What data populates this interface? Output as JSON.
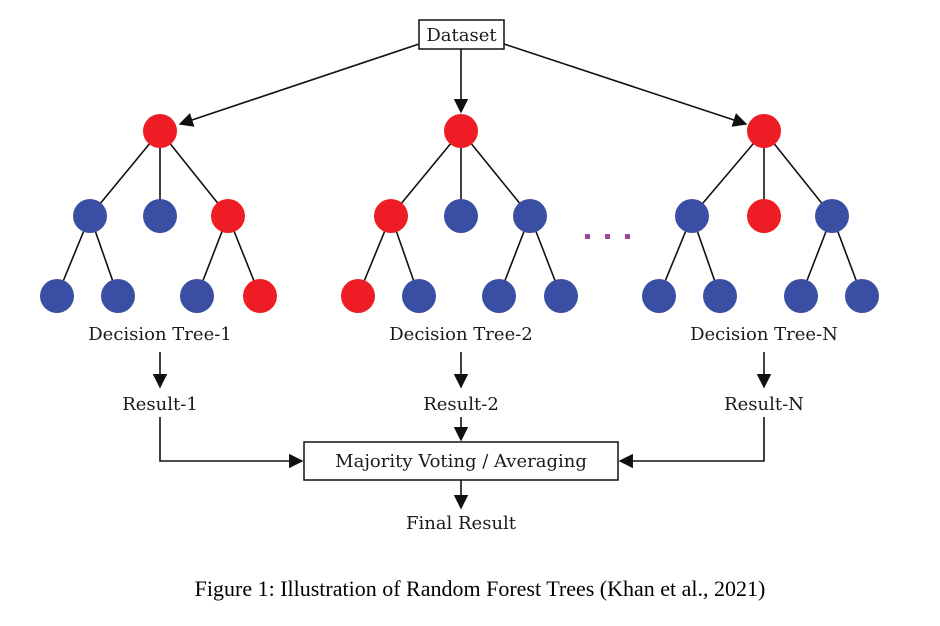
{
  "diagram": {
    "dataset_label": "Dataset",
    "trees": [
      {
        "label": "Decision Tree-1",
        "result": "Result-1"
      },
      {
        "label": "Decision Tree-2",
        "result": "Result-2"
      },
      {
        "label": "Decision Tree-N",
        "result": "Result-N"
      }
    ],
    "ellipsis": "...",
    "aggregator_label": "Majority Voting / Averaging",
    "final_label": "Final Result",
    "caption": "Figure 1: Illustration of Random Forest Trees (Khan et al., 2021)"
  },
  "colors": {
    "red_node": "#ee1c24",
    "blue_node": "#3a4ea3",
    "ellipsis": "#a0449a",
    "line": "#111111"
  }
}
